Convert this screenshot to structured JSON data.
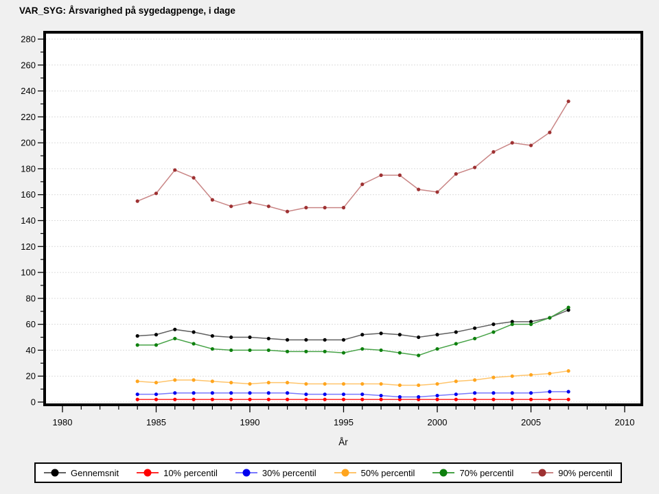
{
  "title": "VAR_SYG: Årsvarighed på sygedagpenge, i dage",
  "chart_data": {
    "type": "line",
    "title": "VAR_SYG: Årsvarighed på sygedagpenge, i dage",
    "xlabel": "År",
    "ylabel": "",
    "x": [
      1984,
      1985,
      1986,
      1987,
      1988,
      1989,
      1990,
      1991,
      1992,
      1993,
      1994,
      1995,
      1996,
      1997,
      1998,
      1999,
      2000,
      2001,
      2002,
      2003,
      2004,
      2005,
      2006,
      2007
    ],
    "xlim": [
      1979,
      2011
    ],
    "ylim": [
      0,
      280
    ],
    "x_major_ticks": [
      1980,
      1985,
      1990,
      1995,
      2000,
      2005,
      2010
    ],
    "x_minor_step": 1,
    "y_major_ticks": [
      0,
      20,
      40,
      60,
      80,
      100,
      120,
      140,
      160,
      180,
      200,
      220,
      240,
      260,
      280
    ],
    "y_minor_step": 10,
    "grid": true,
    "legend_position": "bottom",
    "colors": {
      "page_background": "#f0f0f0",
      "plot_background": "#ffffff",
      "gridline": "#dcdcdc",
      "axis": "#000000"
    },
    "series": [
      {
        "name": "Gennemsnit",
        "color": "#000000",
        "line_color": "#606060",
        "values": [
          51,
          52,
          56,
          54,
          51,
          50,
          50,
          49,
          48,
          48,
          48,
          48,
          52,
          53,
          52,
          50,
          52,
          54,
          57,
          60,
          62,
          62,
          65,
          71
        ]
      },
      {
        "name": "10% percentil",
        "color": "#ff0000",
        "line_color": "#ff2a2a",
        "values": [
          2,
          2,
          2,
          2,
          2,
          2,
          2,
          2,
          2,
          2,
          2,
          2,
          2,
          2,
          2,
          2,
          2,
          2,
          2,
          2,
          2,
          2,
          2,
          2
        ]
      },
      {
        "name": "30% percentil",
        "color": "#0000ee",
        "line_color": "#7878ff",
        "values": [
          6,
          6,
          7,
          7,
          7,
          7,
          7,
          7,
          7,
          6,
          6,
          6,
          6,
          5,
          4,
          4,
          5,
          6,
          7,
          7,
          7,
          7,
          8,
          8
        ]
      },
      {
        "name": "50% percentil",
        "color": "#ffa51e",
        "line_color": "#ffc46a",
        "values": [
          16,
          15,
          17,
          17,
          16,
          15,
          14,
          15,
          15,
          14,
          14,
          14,
          14,
          14,
          13,
          13,
          14,
          16,
          17,
          19,
          20,
          21,
          22,
          24
        ]
      },
      {
        "name": "70% percentil",
        "color": "#0e800e",
        "line_color": "#47a347",
        "values": [
          44,
          44,
          49,
          45,
          41,
          40,
          40,
          40,
          39,
          39,
          39,
          38,
          41,
          40,
          38,
          36,
          41,
          45,
          49,
          54,
          60,
          60,
          65,
          73
        ]
      },
      {
        "name": "90% percentil",
        "color": "#9e3132",
        "line_color": "#c98585",
        "values": [
          155,
          161,
          179,
          173,
          156,
          151,
          154,
          151,
          147,
          150,
          150,
          150,
          168,
          175,
          175,
          164,
          162,
          176,
          181,
          193,
          200,
          198,
          208,
          232
        ]
      }
    ]
  }
}
